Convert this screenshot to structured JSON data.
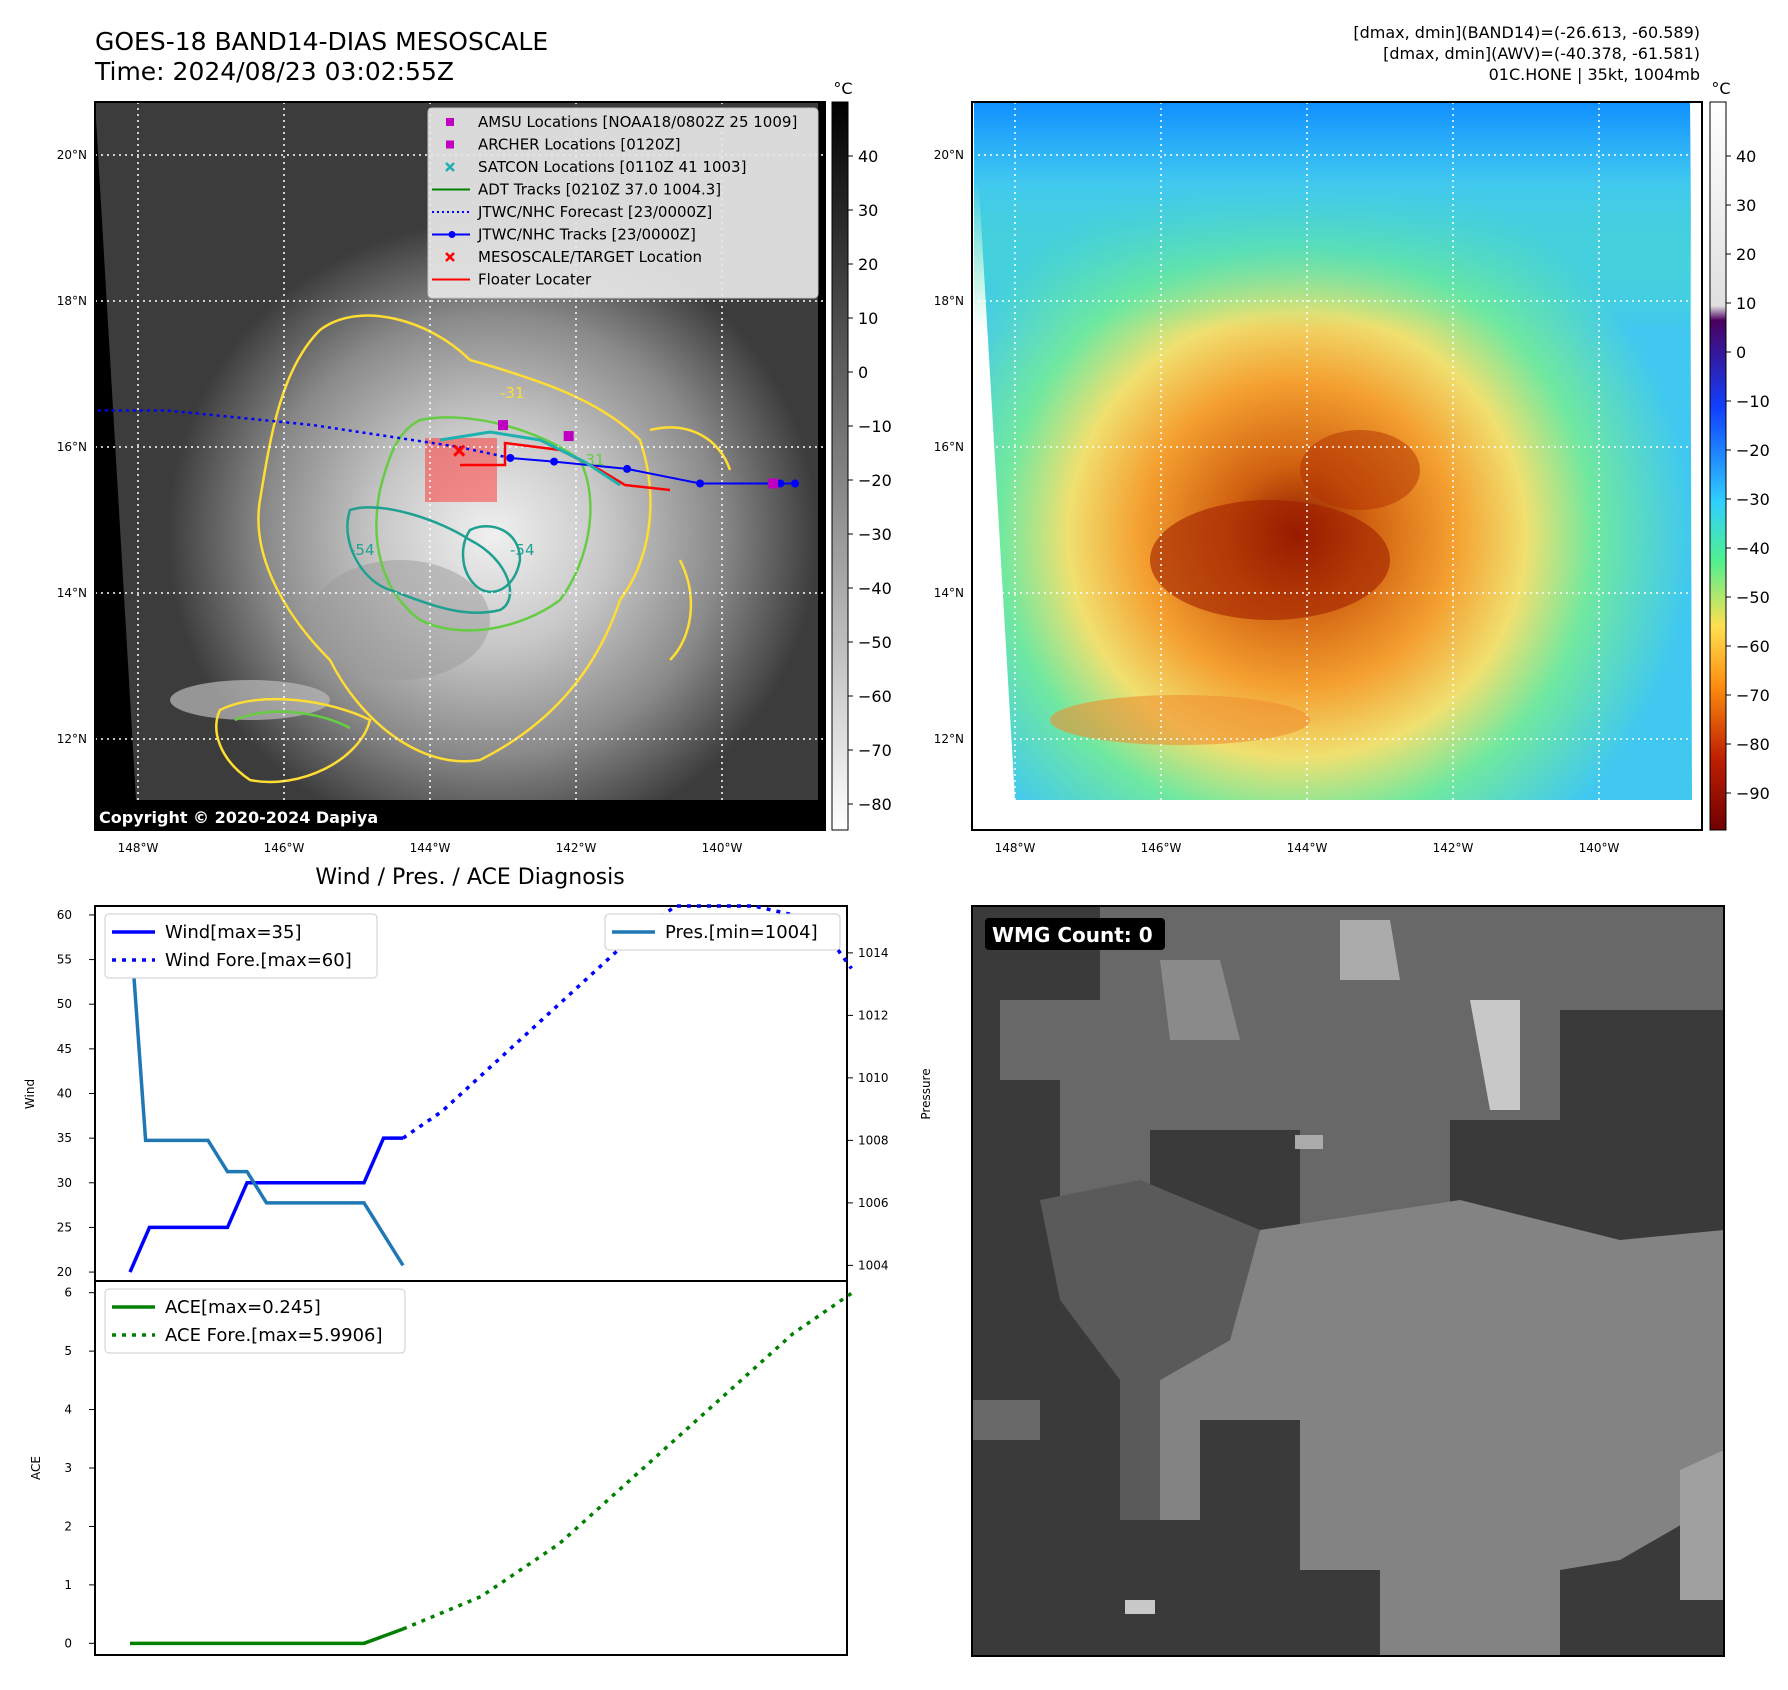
{
  "header": {
    "title_line1": "GOES-18 BAND14-DIAS MESOSCALE",
    "title_line2": "Time: 2024/08/23 03:02:55Z",
    "info_line1": "[dmax, dmin](BAND14)=(-26.613, -60.589)",
    "info_line2": "[dmax, dmin](AWV)=(-40.378, -61.581)",
    "info_line3": "01C.HONE | 35kt, 1004mb"
  },
  "maps": {
    "lat_ticks": [
      "20°N",
      "18°N",
      "16°N",
      "14°N",
      "12°N"
    ],
    "lon_ticks": [
      "148°W",
      "146°W",
      "144°W",
      "142°W",
      "140°W"
    ],
    "colorbar_unit": "°C",
    "ir_colorbar_ticks": [
      "40",
      "30",
      "20",
      "10",
      "0",
      "−10",
      "−20",
      "−30",
      "−40",
      "−50",
      "−60",
      "−70",
      "−80"
    ],
    "wv_colorbar_ticks": [
      "40",
      "30",
      "20",
      "10",
      "0",
      "−10",
      "−20",
      "−30",
      "−40",
      "−50",
      "−60",
      "−70",
      "−80",
      "−90"
    ],
    "copyright": "Copyright © 2020-2024 Dapiya",
    "contour_labels": [
      "-31",
      "-54",
      "-31",
      "-54"
    ],
    "legend": [
      {
        "label": "AMSU Locations [NOAA18/0802Z 25 1009]",
        "color": "#c000c0",
        "marker": "square"
      },
      {
        "label": "ARCHER Locations [0120Z]",
        "color": "#c000c0",
        "marker": "square"
      },
      {
        "label": "SATCON Locations [0110Z 41 1003]",
        "color": "#20b0b0",
        "marker": "x"
      },
      {
        "label": "ADT Tracks [0210Z 37.0 1004.3]",
        "color": "#008000",
        "marker": "line"
      },
      {
        "label": "JTWC/NHC Forecast [23/0000Z]",
        "color": "#0000ff",
        "marker": "dotted"
      },
      {
        "label": "JTWC/NHC Tracks [23/0000Z]",
        "color": "#0000ff",
        "marker": "line-dot"
      },
      {
        "label": "MESOSCALE/TARGET Location",
        "color": "#ff0000",
        "marker": "x"
      },
      {
        "label": "Floater Locater",
        "color": "#ff0000",
        "marker": "line"
      }
    ],
    "track": {
      "jtwc_lon": [
        -139.0,
        -139.2,
        -140.3,
        -141.3,
        -142.3,
        -142.9
      ],
      "jtwc_lat": [
        15.5,
        15.5,
        15.5,
        15.7,
        15.8,
        15.85
      ],
      "forecast_lon": [
        -142.9,
        -143.6,
        -144.6,
        -145.6,
        -146.6,
        -147.6,
        -148.6
      ],
      "forecast_lat": [
        15.85,
        16.0,
        16.15,
        16.3,
        16.4,
        16.5,
        16.5
      ],
      "amsu_lon": -143.0,
      "amsu_lat": 16.3,
      "archer_lon": -142.1,
      "archer_lat": 16.15,
      "amsu2_lon": -139.3,
      "amsu2_lat": 15.5,
      "target_lon": -143.6,
      "target_lat": 15.95
    }
  },
  "chart_data": [
    {
      "type": "line",
      "title": "Wind / Pres. / ACE Diagnosis",
      "ylabel": "Wind",
      "ylim": [
        19,
        61
      ],
      "yticks": [
        20,
        25,
        30,
        35,
        40,
        45,
        50,
        55,
        60
      ],
      "y2label": "Pressure",
      "y2lim": [
        1003.5,
        1015.5
      ],
      "y2ticks": [
        1004,
        1006,
        1008,
        1010,
        1012,
        1014
      ],
      "series": [
        {
          "name": "Wind[max=35]",
          "style": "solid",
          "color": "#0000ff",
          "axis": "left",
          "x": [
            0,
            1,
            5,
            6,
            12,
            13,
            14
          ],
          "y": [
            20,
            25,
            25,
            30,
            30,
            35,
            35
          ]
        },
        {
          "name": "Wind Fore.[max=60]",
          "style": "dotted",
          "color": "#0000ff",
          "axis": "left",
          "x": [
            14,
            16,
            18,
            20,
            22,
            24,
            26,
            28,
            30,
            32,
            34,
            35,
            36,
            37
          ],
          "y": [
            35,
            38,
            42,
            46,
            50,
            54,
            58,
            61,
            61,
            61,
            60,
            57,
            57,
            54
          ]
        },
        {
          "name": "Pres.[min=1004]",
          "style": "solid",
          "color": "#1f77b4",
          "axis": "right",
          "x": [
            0,
            0.8,
            4,
            5,
            6,
            7,
            12,
            13,
            14
          ],
          "y": [
            1015,
            1008,
            1008,
            1007,
            1007,
            1006,
            1006,
            1005,
            1004
          ]
        }
      ]
    },
    {
      "type": "line",
      "ylabel": "ACE",
      "ylim": [
        -0.2,
        6.2
      ],
      "yticks": [
        0,
        1,
        2,
        3,
        4,
        5,
        6
      ],
      "series": [
        {
          "name": "ACE[max=0.245]",
          "style": "solid",
          "color": "#008000",
          "x": [
            0,
            12,
            14
          ],
          "y": [
            0,
            0,
            0.245
          ]
        },
        {
          "name": "ACE Fore.[max=5.9906]",
          "style": "dotted",
          "color": "#008000",
          "x": [
            14,
            18,
            22,
            26,
            30,
            34,
            37
          ],
          "y": [
            0.245,
            0.8,
            1.7,
            2.9,
            4.1,
            5.3,
            5.99
          ]
        }
      ]
    }
  ],
  "wmg": {
    "badge": "WMG Count: 0"
  },
  "colors": {
    "wind": "#0000ff",
    "pressure": "#1f77b4",
    "ace": "#008000",
    "contour_yellow": "#ffdd33",
    "contour_green": "#66cc44",
    "contour_teal": "#20a090"
  }
}
